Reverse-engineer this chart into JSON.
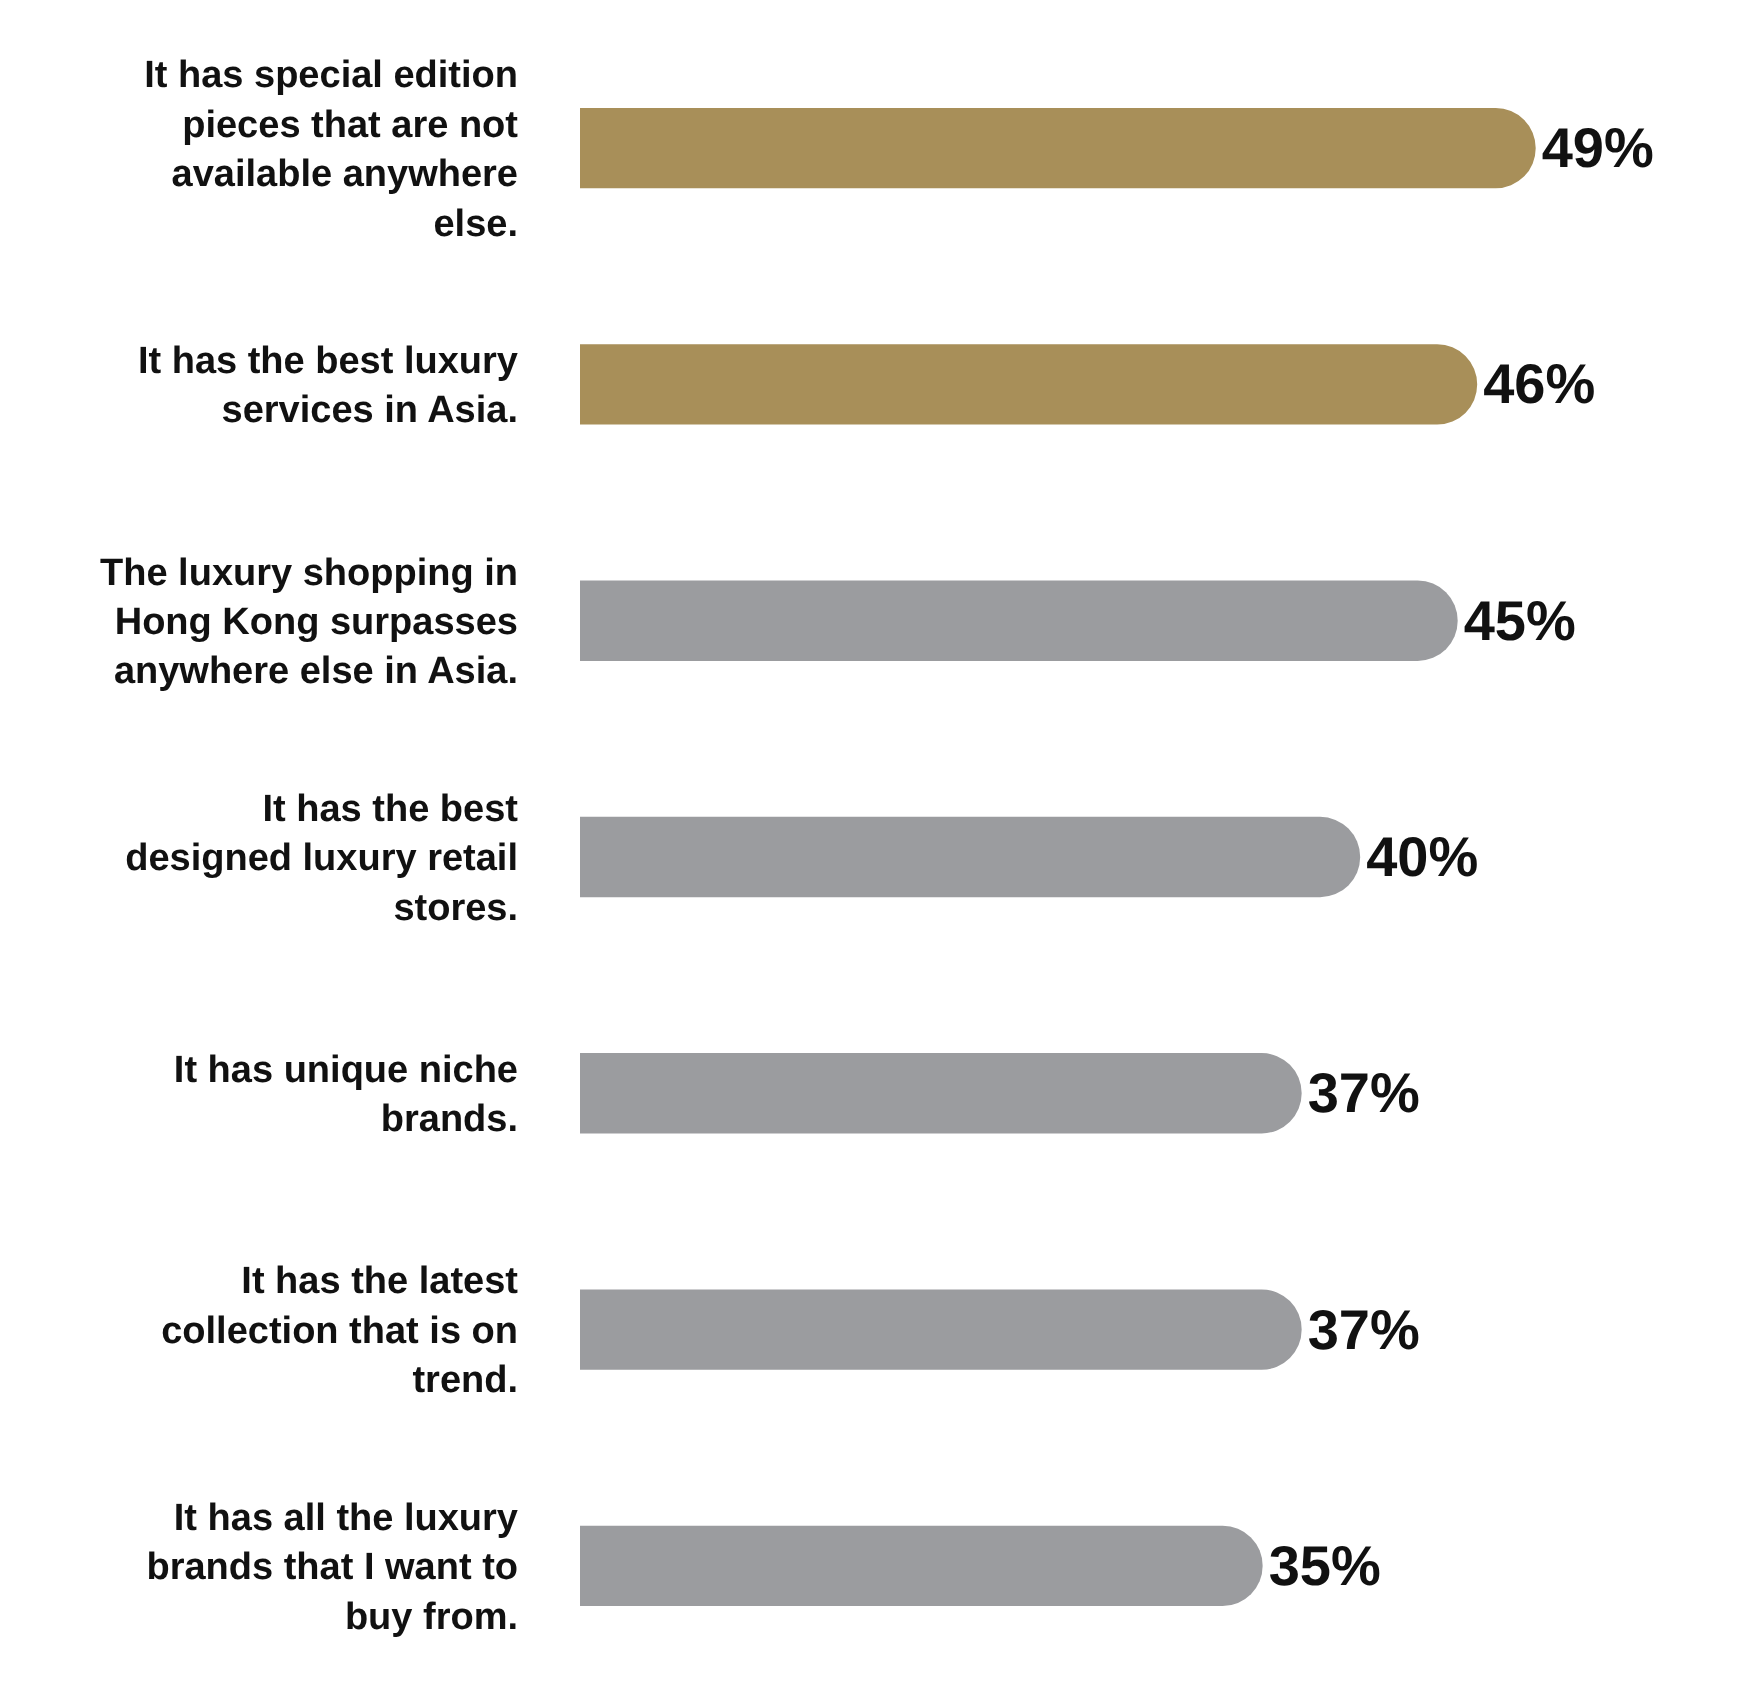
{
  "chart_data": {
    "type": "bar",
    "orientation": "horizontal",
    "categories": [
      "It has special edition pieces that are not available anywhere else.",
      "It has the best luxury services in Asia.",
      "The luxury shopping in Hong Kong surpasses anywhere else in Asia.",
      "It has the best designed luxury retail stores.",
      "It has unique niche brands.",
      "It has the latest collection that is on trend.",
      "It has all the luxury brands that I want to buy from."
    ],
    "values": [
      49,
      46,
      45,
      40,
      37,
      37,
      35
    ],
    "colors": [
      "#a88f59",
      "#a88f59",
      "#9b9c9f",
      "#9b9c9f",
      "#9b9c9f",
      "#9b9c9f",
      "#9b9c9f"
    ],
    "value_labels": [
      "49%",
      "46%",
      "45%",
      "40%",
      "37%",
      "37%",
      "35%"
    ],
    "tick_labels": "y",
    "legend": false
  }
}
